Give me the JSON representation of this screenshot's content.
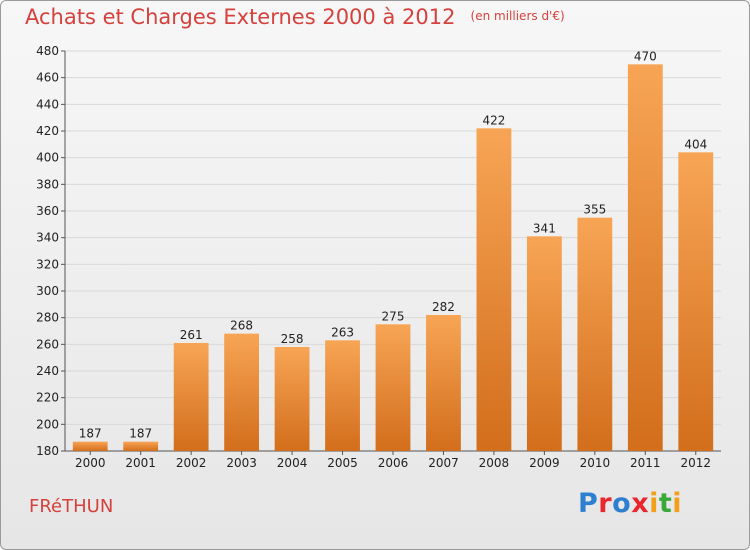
{
  "header": {
    "title": "Achats et Charges Externes 2000 à 2012",
    "unit": "(en milliers d'€)"
  },
  "footer": {
    "commune": "FRéTHUN",
    "logo_text": "Proxiti"
  },
  "colors": {
    "title": "#d5413c",
    "bar_light": "#f7a555",
    "bar_dark": "#d26e1c",
    "grid": "#d9d9d9",
    "logo": [
      "#2f7fd1",
      "#e8282e",
      "#2f7fd1",
      "#e8282e",
      "#f2a01a",
      "#3aa93a",
      "#f2a01a"
    ]
  },
  "chart_data": {
    "type": "bar",
    "title": "Achats et Charges Externes 2000 à 2012",
    "categories": [
      "2000",
      "2001",
      "2002",
      "2003",
      "2004",
      "2005",
      "2006",
      "2007",
      "2008",
      "2009",
      "2010",
      "2011",
      "2012"
    ],
    "values": [
      187,
      187,
      261,
      268,
      258,
      263,
      275,
      282,
      422,
      341,
      355,
      470,
      404
    ],
    "ylim": [
      180,
      480
    ],
    "yticks": [
      180,
      200,
      220,
      240,
      260,
      280,
      300,
      320,
      340,
      360,
      380,
      400,
      420,
      440,
      460,
      480
    ],
    "grid": true,
    "data_labels": true
  }
}
